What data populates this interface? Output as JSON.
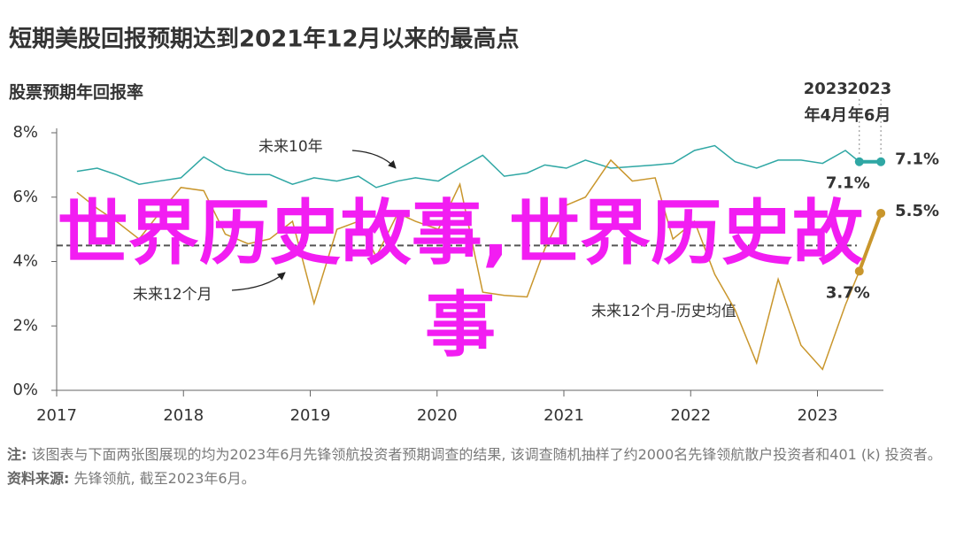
{
  "chart_data": {
    "type": "line",
    "title": "短期美股回报预期达到2021年12月以来的最高点",
    "subtitle": "股票预期年回报率",
    "x": [
      2017.16,
      2017.32,
      2017.47,
      2017.65,
      2017.81,
      2017.98,
      2018.16,
      2018.33,
      2018.51,
      2018.68,
      2018.86,
      2019.03,
      2019.21,
      2019.38,
      2019.52,
      2019.69,
      2019.83,
      2020.01,
      2020.18,
      2020.36,
      2020.53,
      2020.71,
      2020.85,
      2021.02,
      2021.17,
      2021.37,
      2021.54,
      2021.72,
      2021.86,
      2022.03,
      2022.19,
      2022.35,
      2022.52,
      2022.69,
      2022.87,
      2023.04,
      2023.22,
      2023.33,
      2023.5
    ],
    "series": [
      {
        "name": "未来10年",
        "color": "#2fa7a4",
        "values": [
          6.8,
          6.9,
          6.7,
          6.4,
          6.5,
          6.6,
          7.25,
          6.85,
          6.7,
          6.7,
          6.4,
          6.6,
          6.5,
          6.65,
          6.3,
          6.5,
          6.6,
          6.5,
          6.9,
          7.3,
          6.65,
          6.75,
          7.0,
          6.9,
          7.15,
          6.9,
          6.95,
          7.0,
          7.05,
          7.45,
          7.6,
          7.1,
          6.9,
          7.15,
          7.15,
          7.05,
          7.45,
          7.1,
          7.1
        ],
        "value_labels": [
          null,
          null,
          null,
          null,
          null,
          null,
          null,
          null,
          null,
          null,
          null,
          null,
          null,
          null,
          null,
          null,
          null,
          null,
          null,
          null,
          null,
          null,
          null,
          null,
          null,
          null,
          null,
          null,
          null,
          null,
          null,
          null,
          null,
          null,
          null,
          null,
          null,
          "7.1%",
          "7.1%"
        ]
      },
      {
        "name": "未来12个月",
        "color": "#c9962c",
        "values": [
          6.15,
          5.65,
          5.25,
          4.7,
          5.5,
          6.3,
          6.2,
          4.85,
          4.55,
          4.7,
          5.25,
          2.7,
          5.0,
          5.25,
          4.15,
          5.5,
          5.25,
          5.0,
          6.4,
          3.05,
          2.95,
          2.9,
          4.4,
          5.75,
          6.0,
          7.15,
          6.5,
          6.6,
          4.7,
          5.25,
          3.6,
          2.5,
          0.85,
          3.45,
          1.4,
          0.65,
          2.65,
          3.7,
          5.5
        ],
        "value_labels": [
          null,
          null,
          null,
          null,
          null,
          null,
          null,
          null,
          null,
          null,
          null,
          null,
          null,
          null,
          null,
          null,
          null,
          null,
          null,
          null,
          null,
          null,
          null,
          null,
          null,
          null,
          null,
          null,
          null,
          null,
          null,
          null,
          null,
          null,
          null,
          null,
          null,
          "3.7%",
          "5.5%"
        ]
      }
    ],
    "reference_line": {
      "name": "未来12个月-历史均值",
      "value": 4.5,
      "color": "#555555"
    },
    "highlight_labels": [
      [
        "2023",
        "年4月"
      ],
      [
        "2023",
        "年6月"
      ]
    ],
    "xlim": [
      2017,
      2023.52
    ],
    "xticks": [
      2017,
      2018,
      2019,
      2020,
      2021,
      2022,
      2023
    ],
    "ylim": [
      0,
      8
    ],
    "yticks": [
      {
        "value": 0,
        "label": "0%"
      },
      {
        "value": 2,
        "label": "2%"
      },
      {
        "value": 4,
        "label": "4%"
      },
      {
        "value": 6,
        "label": "6%"
      },
      {
        "value": 8,
        "label": "8%"
      }
    ],
    "grid": false
  },
  "watermark": "世界历史故事,世界历史故事",
  "notes": {
    "note_label": "注:",
    "note": "该图表与下面两张图展现的均为2023年6月先锋领航投资者预期调查的结果, 该调查随机抽样了约2000名先锋领航散户投资者和401 (k) 投资者。",
    "source_label": "资料来源:",
    "source": "先锋领航, 截至2023年6月。"
  }
}
